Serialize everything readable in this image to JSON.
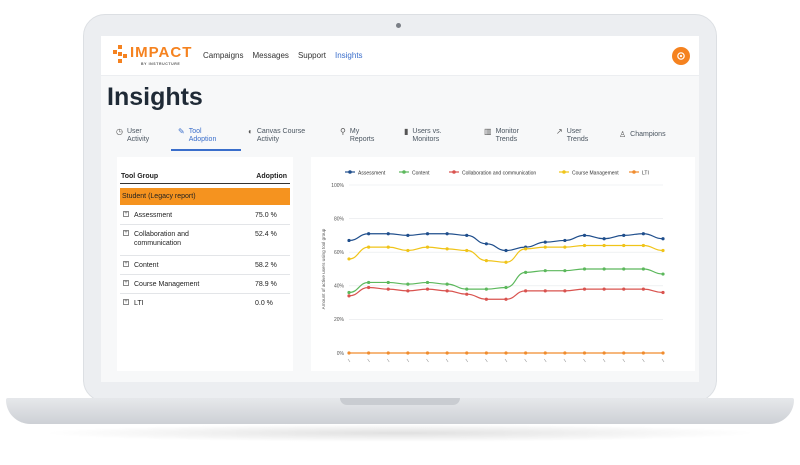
{
  "nav": {
    "logo_text": "IMPACT",
    "logo_sub": "BY INSTRUCTURE",
    "links": [
      "Campaigns",
      "Messages",
      "Support",
      "Insights"
    ],
    "active_link": "Insights",
    "brand_color": "#f5821f"
  },
  "page": {
    "title": "Insights"
  },
  "tabs": [
    {
      "label1": "User",
      "label2": "Activity",
      "icon": "clock-icon"
    },
    {
      "label1": "Tool",
      "label2": "Adoption",
      "icon": "wrench-icon",
      "active": true
    },
    {
      "label1": "Canvas Course",
      "label2": "Activity",
      "icon": "canvas-icon"
    },
    {
      "label1": "My",
      "label2": "Reports",
      "icon": "reports-icon"
    },
    {
      "label1": "Users vs.",
      "label2": "Monitors",
      "icon": "bar-chart-icon"
    },
    {
      "label1": "Monitor",
      "label2": "Trends",
      "icon": "trend-bars-icon"
    },
    {
      "label1": "User",
      "label2": "Trends",
      "icon": "line-trend-icon"
    },
    {
      "label1": "Champions",
      "label2": "",
      "icon": "trophy-icon"
    }
  ],
  "table": {
    "headers": [
      "Tool Group",
      "Adoption"
    ],
    "group": "Student (Legacy report)",
    "rows": [
      {
        "label": "Assessment",
        "value": "75.0 %"
      },
      {
        "label": "Collaboration and communication",
        "value": "52.4 %"
      },
      {
        "label": "Content",
        "value": "58.2 %"
      },
      {
        "label": "Course Management",
        "value": "78.9 %"
      },
      {
        "label": "LTI",
        "value": "0.0 %"
      }
    ]
  },
  "chart_data": {
    "type": "line",
    "ylabel": "Amount of active users using tool group",
    "ylim": [
      0,
      100
    ],
    "yticks": [
      "0%",
      "20%",
      "40%",
      "60%",
      "80%",
      "100%"
    ],
    "legend_position": "top",
    "x": [
      1,
      2,
      3,
      4,
      5,
      6,
      7,
      8,
      9,
      10,
      11,
      12,
      13,
      14,
      15,
      16,
      17
    ],
    "series": [
      {
        "name": "Assessment",
        "color": "#1f4e8c",
        "values": [
          67,
          71,
          71,
          70,
          71,
          71,
          70,
          65,
          61,
          63,
          66,
          67,
          70,
          68,
          70,
          71,
          68
        ]
      },
      {
        "name": "Content",
        "color": "#5cb85c",
        "values": [
          36,
          42,
          42,
          41,
          42,
          41,
          38,
          38,
          39,
          48,
          49,
          49,
          50,
          50,
          50,
          50,
          47
        ]
      },
      {
        "name": "Collaboration and communication",
        "color": "#d9534f",
        "values": [
          34,
          39,
          38,
          37,
          38,
          37,
          35,
          32,
          32,
          37,
          37,
          37,
          38,
          38,
          38,
          38,
          36
        ]
      },
      {
        "name": "Course Management",
        "color": "#f0c419",
        "values": [
          56,
          63,
          63,
          61,
          63,
          62,
          61,
          55,
          54,
          62,
          63,
          63,
          64,
          64,
          64,
          64,
          61
        ]
      },
      {
        "name": "LTI",
        "color": "#f08c2e",
        "values": [
          0,
          0,
          0,
          0,
          0,
          0,
          0,
          0,
          0,
          0,
          0,
          0,
          0,
          0,
          0,
          0,
          0
        ]
      }
    ]
  }
}
